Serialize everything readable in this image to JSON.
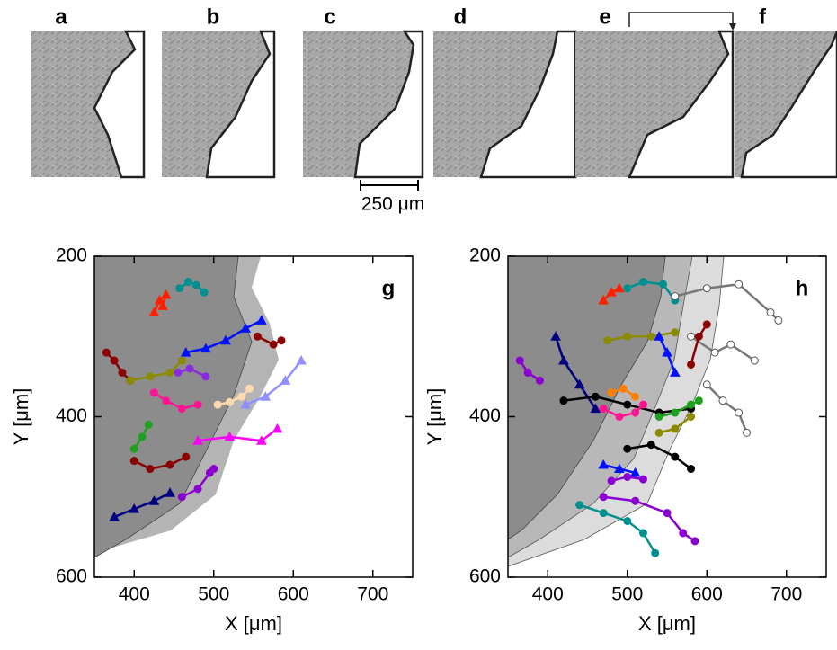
{
  "panels": {
    "labels": [
      "a",
      "b",
      "c",
      "d",
      "e",
      "f"
    ],
    "scale_bar": "250 μm"
  },
  "chart_data": [
    {
      "type": "scatter",
      "panel_label": "g",
      "xlabel": "X [μm]",
      "ylabel": "Y [μm]",
      "xlim": [
        350,
        750
      ],
      "ylim": [
        200,
        600
      ],
      "y_reversed": true,
      "xticks": [
        400,
        500,
        600,
        700
      ],
      "yticks": [
        200,
        400,
        600
      ],
      "series": [
        {
          "color": "#ff2000",
          "marker": "triangle",
          "x": [
            425,
            432,
            440,
            436
          ],
          "y": [
            270,
            255,
            248,
            262
          ]
        },
        {
          "color": "#009090",
          "marker": "circle",
          "x": [
            457,
            468,
            478,
            488
          ],
          "y": [
            240,
            232,
            236,
            245
          ]
        },
        {
          "color": "#0010ff",
          "marker": "triangle",
          "x": [
            465,
            490,
            515,
            540,
            560
          ],
          "y": [
            320,
            315,
            305,
            290,
            280
          ]
        },
        {
          "color": "#8b0000",
          "marker": "circle",
          "x": [
            365,
            375,
            385,
            395
          ],
          "y": [
            320,
            330,
            345,
            355
          ]
        },
        {
          "color": "#8b8b00",
          "marker": "circle",
          "x": [
            395,
            420,
            445,
            460
          ],
          "y": [
            355,
            350,
            345,
            330
          ]
        },
        {
          "color": "#ff1493",
          "marker": "circle",
          "x": [
            425,
            440,
            460,
            480
          ],
          "y": [
            370,
            380,
            390,
            385
          ]
        },
        {
          "color": "#ff00ff",
          "marker": "triangle",
          "x": [
            480,
            520,
            560,
            580
          ],
          "y": [
            430,
            425,
            430,
            415
          ]
        },
        {
          "color": "#20a020",
          "marker": "circle",
          "x": [
            400,
            410,
            418
          ],
          "y": [
            440,
            425,
            410
          ]
        },
        {
          "color": "#8b0000",
          "marker": "circle",
          "x": [
            400,
            420,
            445,
            465
          ],
          "y": [
            455,
            465,
            460,
            450
          ]
        },
        {
          "color": "#000080",
          "marker": "triangle",
          "x": [
            375,
            400,
            425,
            445
          ],
          "y": [
            525,
            515,
            505,
            495
          ]
        },
        {
          "color": "#8a00d0",
          "marker": "circle",
          "x": [
            460,
            480,
            495,
            500
          ],
          "y": [
            500,
            490,
            470,
            465
          ]
        },
        {
          "color": "#ffdab0",
          "marker": "circle",
          "x": [
            505,
            520,
            535,
            545
          ],
          "y": [
            385,
            382,
            375,
            365
          ]
        },
        {
          "color": "#9090ff",
          "marker": "triangle",
          "x": [
            540,
            565,
            590,
            610
          ],
          "y": [
            385,
            375,
            355,
            330
          ]
        },
        {
          "color": "#8b0000",
          "marker": "circle",
          "x": [
            555,
            575,
            585
          ],
          "y": [
            300,
            310,
            305
          ]
        },
        {
          "color": "#8a2be2",
          "marker": "circle",
          "x": [
            455,
            470,
            490
          ],
          "y": [
            345,
            340,
            350
          ]
        }
      ]
    },
    {
      "type": "scatter",
      "panel_label": "h",
      "xlabel": "X [μm]",
      "ylabel": "Y [μm]",
      "xlim": [
        350,
        750
      ],
      "ylim": [
        200,
        600
      ],
      "y_reversed": true,
      "xticks": [
        400,
        500,
        600,
        700
      ],
      "yticks": [
        200,
        400,
        600
      ],
      "series": [
        {
          "color": "#ff2000",
          "marker": "triangle",
          "x": [
            470,
            480,
            490
          ],
          "y": [
            255,
            245,
            240
          ]
        },
        {
          "color": "#009090",
          "marker": "circle",
          "x": [
            500,
            520,
            545,
            560
          ],
          "y": [
            240,
            232,
            235,
            255
          ]
        },
        {
          "color": "#ffffff",
          "marker": "circle",
          "x": [
            560,
            600,
            640,
            680,
            690
          ],
          "y": [
            250,
            240,
            235,
            270,
            280
          ]
        },
        {
          "color": "#ffffff",
          "marker": "circle",
          "x": [
            580,
            610,
            630,
            660
          ],
          "y": [
            300,
            320,
            310,
            330
          ]
        },
        {
          "color": "#ffffff",
          "marker": "circle",
          "x": [
            600,
            620,
            640,
            650
          ],
          "y": [
            360,
            380,
            395,
            420
          ]
        },
        {
          "color": "#8b8b00",
          "marker": "circle",
          "x": [
            475,
            500,
            530,
            560
          ],
          "y": [
            305,
            300,
            300,
            295
          ]
        },
        {
          "color": "#8b0000",
          "marker": "circle",
          "x": [
            580,
            590,
            600
          ],
          "y": [
            335,
            300,
            285
          ]
        },
        {
          "color": "#0010ff",
          "marker": "triangle",
          "x": [
            540,
            550,
            560
          ],
          "y": [
            300,
            320,
            345
          ]
        },
        {
          "color": "#000080",
          "marker": "triangle",
          "x": [
            410,
            420,
            440,
            460
          ],
          "y": [
            300,
            330,
            360,
            390
          ]
        },
        {
          "color": "#8a00d0",
          "marker": "circle",
          "x": [
            365,
            375,
            390
          ],
          "y": [
            330,
            345,
            355
          ]
        },
        {
          "color": "#000000",
          "marker": "circle",
          "x": [
            420,
            460,
            500,
            540,
            580
          ],
          "y": [
            380,
            375,
            385,
            395,
            390
          ]
        },
        {
          "color": "#ff8000",
          "marker": "circle",
          "x": [
            480,
            495,
            510
          ],
          "y": [
            370,
            365,
            375
          ]
        },
        {
          "color": "#ff1493",
          "marker": "circle",
          "x": [
            470,
            490,
            510,
            520
          ],
          "y": [
            390,
            400,
            395,
            385
          ]
        },
        {
          "color": "#20a020",
          "marker": "circle",
          "x": [
            540,
            560,
            580,
            590
          ],
          "y": [
            400,
            395,
            385,
            380
          ]
        },
        {
          "color": "#8b8b00",
          "marker": "circle",
          "x": [
            540,
            560,
            580
          ],
          "y": [
            420,
            415,
            400
          ]
        },
        {
          "color": "#000000",
          "marker": "circle",
          "x": [
            500,
            530,
            560,
            580
          ],
          "y": [
            440,
            435,
            450,
            465
          ]
        },
        {
          "color": "#0010ff",
          "marker": "triangle",
          "x": [
            470,
            490,
            510
          ],
          "y": [
            460,
            465,
            470
          ]
        },
        {
          "color": "#8a00d0",
          "marker": "circle",
          "x": [
            480,
            500,
            520
          ],
          "y": [
            480,
            475,
            478
          ]
        },
        {
          "color": "#009090",
          "marker": "circle",
          "x": [
            440,
            470,
            500,
            520,
            535
          ],
          "y": [
            510,
            520,
            530,
            545,
            570
          ]
        },
        {
          "color": "#8a00d0",
          "marker": "circle",
          "x": [
            470,
            510,
            550,
            570,
            585
          ],
          "y": [
            500,
            505,
            520,
            545,
            555
          ]
        }
      ]
    }
  ]
}
